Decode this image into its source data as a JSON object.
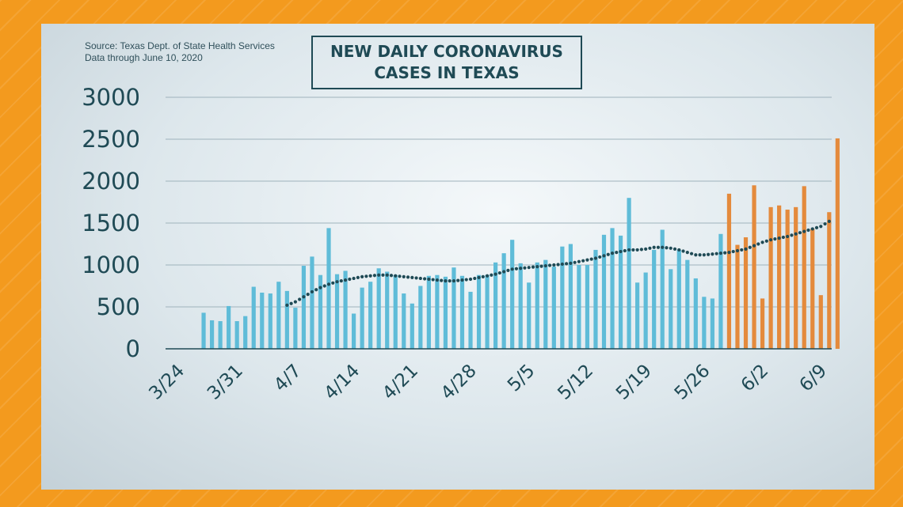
{
  "source": {
    "line1": "Source: Texas Dept. of State Health Services",
    "line2": "Data through June 10, 2020"
  },
  "chart_data": {
    "type": "bar",
    "title": "NEW DAILY CORONAVIRUS\nCASES IN TEXAS",
    "ylim": [
      0,
      3000
    ],
    "y_ticks": [
      0,
      500,
      1000,
      1500,
      2000,
      2500,
      3000
    ],
    "x_tick_labels": [
      "3/24",
      "3/31",
      "4/7",
      "4/14",
      "4/21",
      "4/28",
      "5/5",
      "5/12",
      "5/19",
      "5/26",
      "6/2",
      "6/9"
    ],
    "grid": true,
    "colors": {
      "blue": "#5fbcd8",
      "orange": "#e48a3c",
      "trend": "#1f4a55"
    },
    "series": [
      {
        "color": "blue",
        "start_date": "3/26",
        "values": [
          430,
          340,
          330,
          510,
          330,
          390,
          740,
          670,
          660,
          800,
          690,
          490,
          990,
          1100,
          880,
          1440,
          890,
          930,
          420,
          730,
          800,
          960,
          920,
          880,
          660,
          540,
          750,
          870,
          880,
          860,
          970,
          870,
          680,
          880,
          880,
          1030,
          1140,
          1300,
          1020,
          790,
          1030,
          1060,
          980,
          1220,
          1250,
          1000,
          1000,
          1180,
          1360,
          1440,
          1350,
          1800,
          790,
          910,
          1180,
          1420,
          950,
          1180,
          1060,
          840,
          620,
          600,
          1370
        ]
      },
      {
        "color": "orange",
        "start_date": "5/28",
        "values": [
          1850,
          1240,
          1330,
          1950,
          600,
          1690,
          1710,
          1660,
          1690,
          1940,
          1430,
          640,
          1630,
          2510
        ]
      }
    ],
    "trend": {
      "style": "dotted",
      "start_date": "4/5",
      "values": [
        520,
        560,
        620,
        680,
        730,
        770,
        800,
        820,
        840,
        860,
        870,
        880,
        880,
        870,
        860,
        850,
        840,
        830,
        820,
        810,
        810,
        820,
        830,
        850,
        870,
        890,
        920,
        950,
        960,
        970,
        980,
        990,
        1000,
        1010,
        1020,
        1040,
        1060,
        1080,
        1110,
        1140,
        1160,
        1180,
        1180,
        1190,
        1210,
        1210,
        1200,
        1180,
        1150,
        1120,
        1120,
        1130,
        1140,
        1150,
        1170,
        1190,
        1230,
        1270,
        1300,
        1320,
        1340,
        1370,
        1400,
        1430,
        1460,
        1520
      ]
    }
  }
}
